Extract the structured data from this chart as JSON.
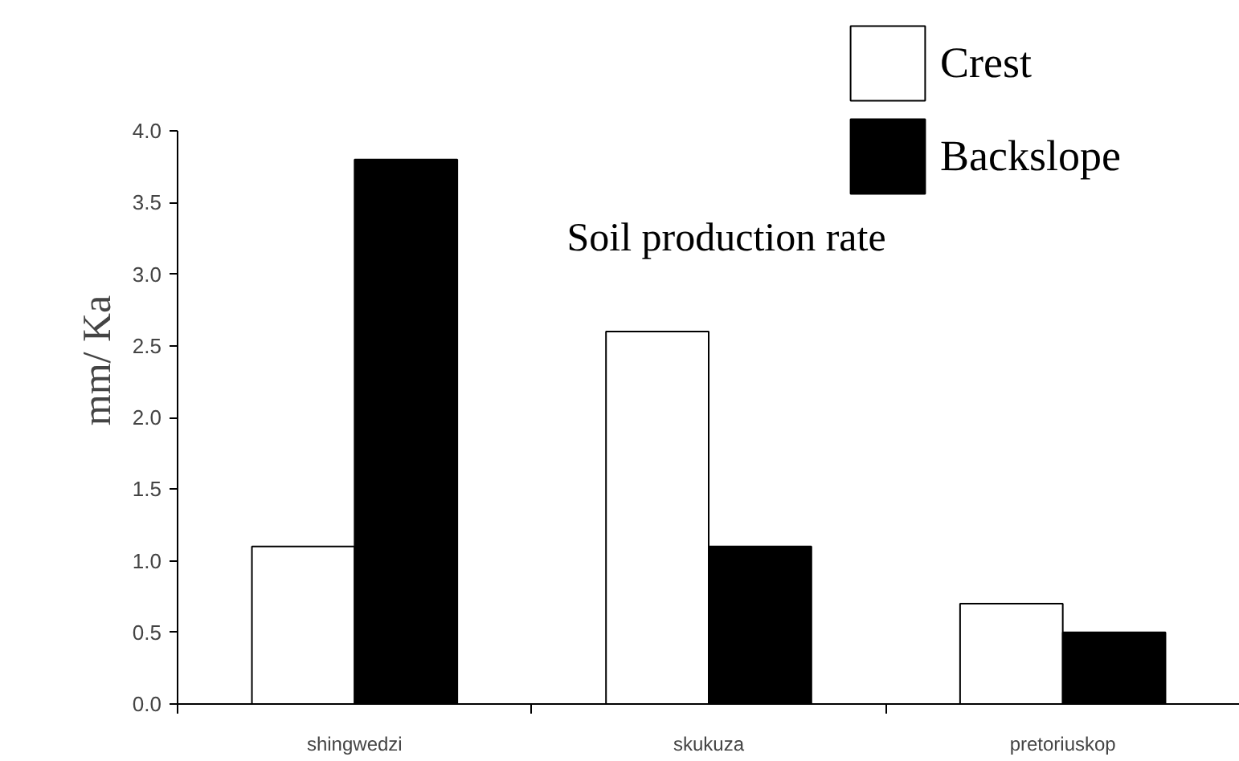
{
  "chart_data": {
    "type": "bar",
    "title": "Soil production rate",
    "ylabel": "mm/ Ka",
    "categories": [
      "shingwedzi",
      "skukuza",
      "pretoriuskop"
    ],
    "series": [
      {
        "name": "Crest",
        "color": "#ffffff",
        "values": [
          1.1,
          2.6,
          0.7
        ]
      },
      {
        "name": "Backslope",
        "color": "#000000",
        "values": [
          3.8,
          1.1,
          0.5
        ]
      }
    ],
    "ylim": [
      0,
      4.0
    ],
    "yticks": [
      {
        "value": 0,
        "label": "0.0"
      },
      {
        "value": 0.5,
        "label": "0.5"
      },
      {
        "value": 1,
        "label": "1.0"
      },
      {
        "value": 1.5,
        "label": "1.5"
      },
      {
        "value": 2,
        "label": "2.0"
      },
      {
        "value": 2.5,
        "label": "2.5"
      },
      {
        "value": 3,
        "label": "3.0"
      },
      {
        "value": 3.5,
        "label": "3.5"
      },
      {
        "value": 4,
        "label": "4.0"
      }
    ],
    "grid": false,
    "legend": "top right"
  }
}
